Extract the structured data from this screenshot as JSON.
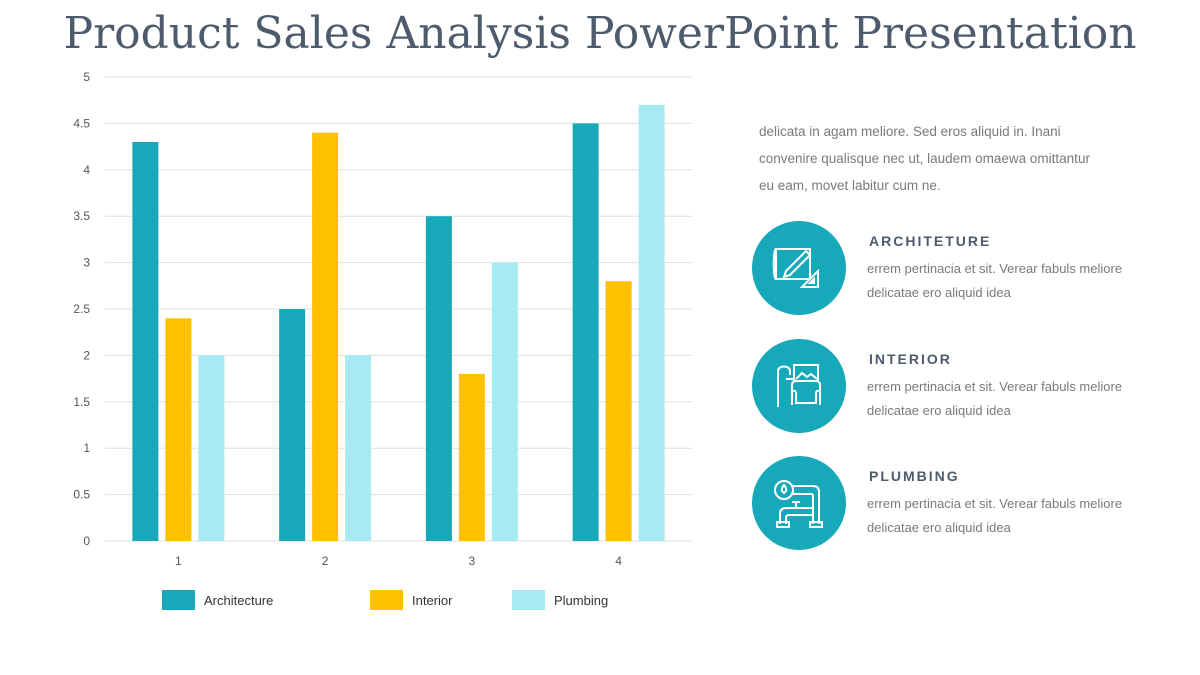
{
  "title": "Product Sales Analysis PowerPoint Presentation",
  "intro": "delicata in agam meliore. Sed eros aliquid in. Inani convenire qualisque nec ut, laudem omaewa omittantur eu eam, movet labitur cum ne.",
  "items": [
    {
      "heading": "ARCHITETURE",
      "text": "errem pertinacia et sit. Verear fabuls meliore delicatae ero aliquid idea",
      "icon": "blueprint-pencil-icon"
    },
    {
      "heading": "INTERIOR",
      "text": "errem pertinacia et sit. Verear fabuls meliore delicatae ero aliquid idea",
      "icon": "armchair-lamp-icon"
    },
    {
      "heading": "PLUMBING",
      "text": "errem pertinacia et sit. Verear fabuls meliore delicatae ero aliquid idea",
      "icon": "pipes-icon"
    }
  ],
  "chart_data": {
    "type": "bar",
    "categories": [
      "1",
      "2",
      "3",
      "4"
    ],
    "series": [
      {
        "name": "Architecture",
        "values": [
          4.3,
          2.5,
          3.5,
          4.5
        ],
        "color": "#17a8ba"
      },
      {
        "name": "Interior",
        "values": [
          2.4,
          4.4,
          1.8,
          2.8
        ],
        "color": "#ffc000"
      },
      {
        "name": "Plumbing",
        "values": [
          2,
          2,
          3,
          4.7
        ],
        "color": "#a6ebf3"
      }
    ],
    "ylim": [
      0,
      5
    ],
    "yticks": [
      "0",
      "0.5",
      "1",
      "1.5",
      "2",
      "2.5",
      "3",
      "3.5",
      "4",
      "4.5",
      "5"
    ],
    "grid": true,
    "legend": "bottom"
  }
}
